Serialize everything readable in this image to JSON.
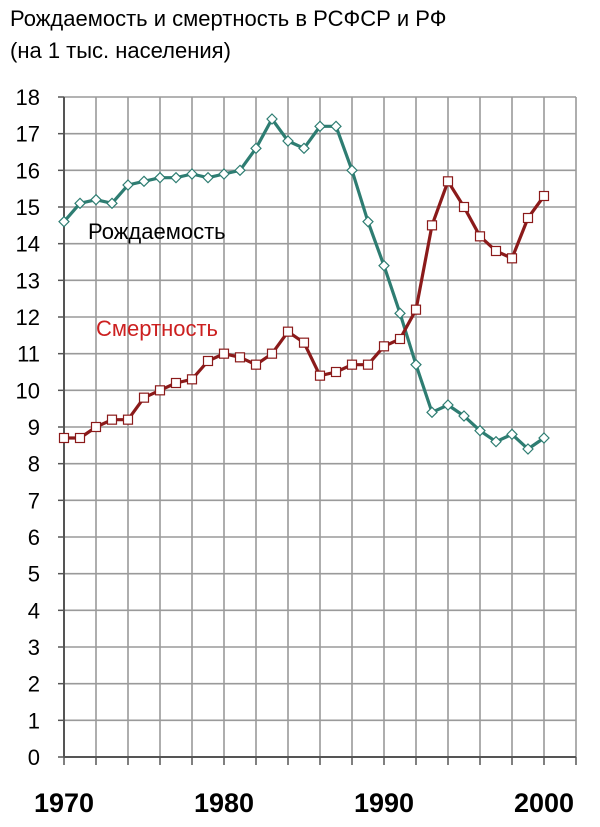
{
  "title_line1": "Рождаемость и смертность в РСФСР и РФ",
  "title_line2": "(на 1 тыс. населения)",
  "chart_data": {
    "type": "line",
    "title": "Рождаемость и смертность в РСФСР и РФ (на 1 тыс. населения)",
    "xlabel": "",
    "ylabel": "",
    "xlim": [
      1970,
      2002
    ],
    "ylim": [
      0,
      18
    ],
    "y_ticks": [
      "0",
      "1",
      "2",
      "3",
      "4",
      "5",
      "6",
      "7",
      "8",
      "9",
      "10",
      "11",
      "12",
      "13",
      "14",
      "15",
      "16",
      "17",
      "18"
    ],
    "x_ticks": [
      "1970",
      "1980",
      "1990",
      "2000"
    ],
    "grid": true,
    "x": [
      1970,
      1971,
      1972,
      1973,
      1974,
      1975,
      1976,
      1977,
      1978,
      1979,
      1980,
      1981,
      1982,
      1983,
      1984,
      1985,
      1986,
      1987,
      1988,
      1989,
      1990,
      1991,
      1992,
      1993,
      1994,
      1995,
      1996,
      1997,
      1998,
      1999,
      2000
    ],
    "series": [
      {
        "name": "Рождаемость",
        "color": "#2e7d72",
        "label_color": "#000000",
        "values": [
          14.6,
          15.1,
          15.2,
          15.1,
          15.6,
          15.7,
          15.8,
          15.8,
          15.9,
          15.8,
          15.9,
          16.0,
          16.6,
          17.4,
          16.8,
          16.6,
          17.2,
          17.2,
          16.0,
          14.6,
          13.4,
          12.1,
          10.7,
          9.4,
          9.6,
          9.3,
          8.9,
          8.6,
          8.8,
          8.4,
          8.7
        ]
      },
      {
        "name": "Смертность",
        "color": "#8b1a1a",
        "label_color": "#cc2020",
        "values": [
          8.7,
          8.7,
          9.0,
          9.2,
          9.2,
          9.8,
          10.0,
          10.2,
          10.3,
          10.8,
          11.0,
          10.9,
          10.7,
          11.0,
          11.6,
          11.3,
          10.4,
          10.5,
          10.7,
          10.7,
          11.2,
          11.4,
          12.2,
          14.5,
          15.7,
          15.0,
          14.2,
          13.8,
          13.6,
          14.7,
          15.3
        ]
      }
    ]
  },
  "series_label_colors": [
    "#000000",
    "#cc2020"
  ]
}
